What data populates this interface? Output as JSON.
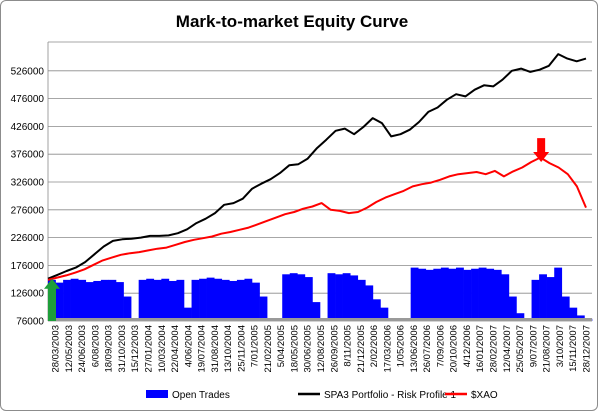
{
  "chart_data": {
    "type": "line",
    "title": "Mark-to-market Equity Curve",
    "ylim": [
      76000,
      576000
    ],
    "y_ticks": [
      76000,
      126000,
      176000,
      226000,
      276000,
      326000,
      376000,
      426000,
      476000,
      526000
    ],
    "y_tick_labels": [
      "76000",
      "126000",
      "176000",
      "226000",
      "276000",
      "326000",
      "376000",
      "426000",
      "476000",
      "526000"
    ],
    "x_tick_labels": [
      "28/03/2003",
      "12/05/2003",
      "24/06/2003",
      "6/08/2003",
      "18/09/2003",
      "31/10/2003",
      "15/12/2003",
      "27/01/2004",
      "10/03/2004",
      "22/04/2004",
      "4/06/2004",
      "19/07/2004",
      "31/08/2004",
      "13/10/2004",
      "25/11/2004",
      "7/01/2005",
      "21/02/2005",
      "5/04/2005",
      "18/05/2005",
      "30/06/2005",
      "12/08/2005",
      "26/09/2005",
      "8/11/2005",
      "21/12/2005",
      "2/02/2006",
      "17/03/2006",
      "1/05/2006",
      "13/06/2006",
      "26/07/2006",
      "7/09/2006",
      "20/10/2006",
      "4/12/2006",
      "16/01/2007",
      "28/02/2007",
      "12/04/2007",
      "25/05/2007",
      "9/07/2007",
      "21/08/2007",
      "3/10/2007",
      "15/11/2007",
      "28/12/2007"
    ],
    "grid": true,
    "legend_position": "bottom",
    "series": [
      {
        "name": "SPA3 Portfolio - Risk Profile 1",
        "type": "line",
        "color": "#000000",
        "values": [
          152000,
          159000,
          166000,
          172000,
          182000,
          196000,
          210000,
          220000,
          223000,
          224000,
          226000,
          229000,
          229000,
          230000,
          234000,
          241000,
          252000,
          260000,
          270000,
          285000,
          288000,
          296000,
          314000,
          323000,
          331000,
          342000,
          356000,
          358000,
          368000,
          387000,
          402000,
          418000,
          422000,
          412000,
          425000,
          441000,
          432000,
          408000,
          412000,
          420000,
          434000,
          452000,
          460000,
          474000,
          484000,
          480000,
          492000,
          500000,
          498000,
          510000,
          526000,
          530000,
          524000,
          528000,
          535000,
          556000,
          548000,
          543000,
          548000
        ]
      },
      {
        "name": "$XAO",
        "type": "line",
        "color": "#ff0000",
        "values": [
          150000,
          154000,
          158000,
          163000,
          169000,
          177000,
          185000,
          190000,
          195000,
          198000,
          200000,
          203000,
          206000,
          208000,
          213000,
          218000,
          222000,
          225000,
          228000,
          233000,
          236000,
          240000,
          244000,
          250000,
          256000,
          262000,
          268000,
          272000,
          278000,
          282000,
          288000,
          276000,
          274000,
          270000,
          272000,
          280000,
          290000,
          298000,
          304000,
          310000,
          318000,
          322000,
          325000,
          330000,
          336000,
          340000,
          342000,
          344000,
          340000,
          346000,
          336000,
          345000,
          352000,
          362000,
          370000,
          360000,
          352000,
          340000,
          318000,
          280000
        ]
      },
      {
        "name": "Open Trades",
        "type": "area",
        "color": "#0000ff",
        "values": [
          150000,
          145000,
          150000,
          152000,
          150000,
          146000,
          148000,
          150000,
          150000,
          146000,
          120000,
          80000,
          150000,
          152000,
          150000,
          152000,
          148000,
          150000,
          100000,
          150000,
          152000,
          154000,
          152000,
          150000,
          148000,
          150000,
          152000,
          145000,
          120000,
          80000,
          76000,
          160000,
          162000,
          160000,
          155000,
          110000,
          76000,
          162000,
          160000,
          162000,
          158000,
          150000,
          140000,
          115000,
          100000,
          80000,
          76000,
          76000,
          172000,
          170000,
          168000,
          170000,
          172000,
          170000,
          172000,
          168000,
          170000,
          172000,
          170000,
          168000,
          160000,
          120000,
          90000,
          76000,
          150000,
          160000,
          155000,
          172000,
          120000,
          100000,
          86000,
          80000
        ]
      }
    ],
    "annotations": [
      {
        "type": "arrow",
        "direction": "up",
        "color": "#1e9e3a",
        "x_fraction": 0.0,
        "from_value": 76000,
        "to_value": 152000
      },
      {
        "type": "arrow",
        "direction": "down",
        "color": "#ff0000",
        "x_fraction": 0.916,
        "from_value": 405000,
        "to_value": 362000
      }
    ]
  }
}
